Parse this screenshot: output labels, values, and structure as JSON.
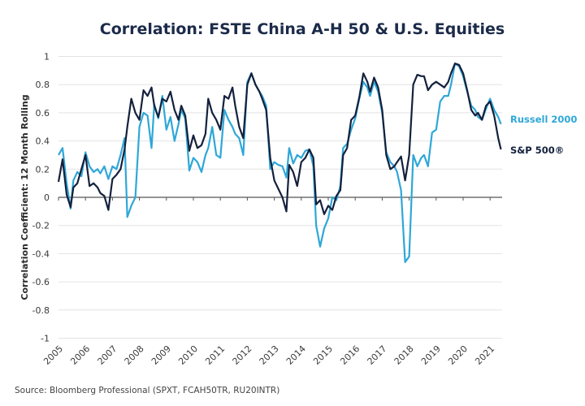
{
  "chart_data": {
    "type": "line",
    "title": "Correlation: FSTE China A-H 50 & U.S. Equities",
    "xlabel": "",
    "ylabel": "Correlation Coefficient: 12 Month Rolling",
    "ylim": [
      -1,
      1
    ],
    "xlim": [
      2005,
      2021.45
    ],
    "yticks": [
      "1",
      "0.8",
      "0.6",
      "0.4",
      "0.2",
      "0",
      "-0.2",
      "-0.4",
      "-0.6",
      "-0.8",
      "-1"
    ],
    "ytick_values": [
      1,
      0.8,
      0.6,
      0.4,
      0.2,
      0,
      -0.2,
      -0.4,
      -0.6,
      -0.8,
      -1
    ],
    "xticks": [
      "2005",
      "2006",
      "2007",
      "2008",
      "2009",
      "2010",
      "2011",
      "2012",
      "2013",
      "2014",
      "2015",
      "2016",
      "2017",
      "2018",
      "2019",
      "2020",
      "2021"
    ],
    "grid": true,
    "legend": "right",
    "source": "Source: Bloomberg Professional (SPXT, FCAH50TR, RU20INTR)",
    "series": [
      {
        "name": "S&P 500®",
        "color": "#14213d",
        "x": [
          2005.0,
          2005.15,
          2005.3,
          2005.45,
          2005.55,
          2005.7,
          2005.85,
          2006.0,
          2006.15,
          2006.3,
          2006.45,
          2006.55,
          2006.7,
          2006.85,
          2007.0,
          2007.15,
          2007.3,
          2007.45,
          2007.55,
          2007.7,
          2007.85,
          2008.0,
          2008.15,
          2008.3,
          2008.45,
          2008.55,
          2008.7,
          2008.85,
          2009.0,
          2009.15,
          2009.3,
          2009.45,
          2009.55,
          2009.7,
          2009.85,
          2010.0,
          2010.15,
          2010.3,
          2010.45,
          2010.55,
          2010.7,
          2010.85,
          2011.0,
          2011.15,
          2011.3,
          2011.45,
          2011.55,
          2011.7,
          2011.85,
          2012.0,
          2012.15,
          2012.3,
          2012.45,
          2012.55,
          2012.7,
          2012.85,
          2013.0,
          2013.15,
          2013.3,
          2013.45,
          2013.55,
          2013.7,
          2013.85,
          2014.0,
          2014.15,
          2014.3,
          2014.45,
          2014.55,
          2014.7,
          2014.85,
          2015.0,
          2015.15,
          2015.3,
          2015.45,
          2015.55,
          2015.7,
          2015.85,
          2016.0,
          2016.15,
          2016.3,
          2016.45,
          2016.55,
          2016.7,
          2016.85,
          2017.0,
          2017.15,
          2017.3,
          2017.45,
          2017.55,
          2017.7,
          2017.85,
          2018.0,
          2018.15,
          2018.3,
          2018.45,
          2018.55,
          2018.7,
          2018.85,
          2019.0,
          2019.15,
          2019.3,
          2019.45,
          2019.55,
          2019.7,
          2019.85,
          2020.0,
          2020.15,
          2020.3,
          2020.45,
          2020.55,
          2020.7,
          2020.85,
          2021.0,
          2021.15,
          2021.3,
          2021.4
        ],
        "values": [
          0.11,
          0.27,
          0.02,
          -0.07,
          0.07,
          0.1,
          0.2,
          0.3,
          0.08,
          0.1,
          0.07,
          0.03,
          0.01,
          -0.09,
          0.13,
          0.16,
          0.2,
          0.34,
          0.5,
          0.7,
          0.6,
          0.55,
          0.76,
          0.72,
          0.78,
          0.65,
          0.57,
          0.7,
          0.68,
          0.75,
          0.62,
          0.55,
          0.65,
          0.58,
          0.33,
          0.44,
          0.35,
          0.37,
          0.45,
          0.7,
          0.6,
          0.55,
          0.48,
          0.72,
          0.7,
          0.78,
          0.65,
          0.5,
          0.42,
          0.8,
          0.88,
          0.8,
          0.75,
          0.7,
          0.62,
          0.28,
          0.12,
          0.06,
          0.0,
          -0.1,
          0.23,
          0.18,
          0.08,
          0.25,
          0.28,
          0.34,
          0.28,
          -0.05,
          -0.02,
          -0.12,
          -0.06,
          -0.09,
          0.01,
          0.05,
          0.3,
          0.35,
          0.55,
          0.58,
          0.71,
          0.88,
          0.82,
          0.75,
          0.85,
          0.78,
          0.62,
          0.3,
          0.2,
          0.22,
          0.25,
          0.29,
          0.12,
          0.3,
          0.8,
          0.87,
          0.86,
          0.86,
          0.76,
          0.8,
          0.82,
          0.8,
          0.78,
          0.82,
          0.88,
          0.95,
          0.94,
          0.88,
          0.76,
          0.62,
          0.58,
          0.6,
          0.55,
          0.65,
          0.68,
          0.58,
          0.42,
          0.34
        ]
      },
      {
        "name": "Russell 2000",
        "color": "#2ea7d8",
        "x": [
          2005.0,
          2005.15,
          2005.3,
          2005.45,
          2005.55,
          2005.7,
          2005.85,
          2006.0,
          2006.15,
          2006.3,
          2006.45,
          2006.55,
          2006.7,
          2006.85,
          2007.0,
          2007.15,
          2007.3,
          2007.45,
          2007.55,
          2007.7,
          2007.85,
          2008.0,
          2008.15,
          2008.3,
          2008.45,
          2008.55,
          2008.7,
          2008.85,
          2009.0,
          2009.15,
          2009.3,
          2009.45,
          2009.55,
          2009.7,
          2009.85,
          2010.0,
          2010.15,
          2010.3,
          2010.45,
          2010.55,
          2010.7,
          2010.85,
          2011.0,
          2011.15,
          2011.3,
          2011.45,
          2011.55,
          2011.7,
          2011.85,
          2012.0,
          2012.15,
          2012.3,
          2012.45,
          2012.55,
          2012.7,
          2012.85,
          2013.0,
          2013.15,
          2013.3,
          2013.45,
          2013.55,
          2013.7,
          2013.85,
          2014.0,
          2014.15,
          2014.3,
          2014.45,
          2014.55,
          2014.7,
          2014.85,
          2015.0,
          2015.15,
          2015.3,
          2015.45,
          2015.55,
          2015.7,
          2015.85,
          2016.0,
          2016.15,
          2016.3,
          2016.45,
          2016.55,
          2016.7,
          2016.85,
          2017.0,
          2017.15,
          2017.3,
          2017.45,
          2017.55,
          2017.7,
          2017.85,
          2018.0,
          2018.15,
          2018.3,
          2018.45,
          2018.55,
          2018.7,
          2018.85,
          2019.0,
          2019.15,
          2019.3,
          2019.45,
          2019.55,
          2019.7,
          2019.85,
          2020.0,
          2020.15,
          2020.3,
          2020.45,
          2020.55,
          2020.7,
          2020.85,
          2021.0,
          2021.15,
          2021.3,
          2021.4
        ],
        "values": [
          0.3,
          0.35,
          0.1,
          -0.08,
          0.12,
          0.18,
          0.15,
          0.32,
          0.22,
          0.18,
          0.2,
          0.17,
          0.22,
          0.13,
          0.22,
          0.2,
          0.3,
          0.42,
          -0.14,
          -0.06,
          0.0,
          0.5,
          0.6,
          0.58,
          0.35,
          0.66,
          0.56,
          0.72,
          0.48,
          0.57,
          0.4,
          0.52,
          0.62,
          0.56,
          0.19,
          0.28,
          0.25,
          0.18,
          0.3,
          0.35,
          0.5,
          0.3,
          0.28,
          0.62,
          0.55,
          0.5,
          0.45,
          0.42,
          0.3,
          0.82,
          0.88,
          0.8,
          0.75,
          0.72,
          0.65,
          0.2,
          0.25,
          0.23,
          0.22,
          0.14,
          0.35,
          0.24,
          0.3,
          0.28,
          0.33,
          0.34,
          0.22,
          -0.2,
          -0.35,
          -0.22,
          -0.15,
          0.0,
          -0.02,
          0.08,
          0.35,
          0.38,
          0.48,
          0.56,
          0.7,
          0.82,
          0.78,
          0.72,
          0.82,
          0.75,
          0.6,
          0.32,
          0.25,
          0.22,
          0.18,
          0.05,
          -0.46,
          -0.42,
          0.3,
          0.22,
          0.28,
          0.3,
          0.22,
          0.46,
          0.48,
          0.68,
          0.72,
          0.72,
          0.8,
          0.95,
          0.93,
          0.86,
          0.75,
          0.65,
          0.62,
          0.57,
          0.55,
          0.63,
          0.7,
          0.62,
          0.57,
          0.52
        ]
      }
    ]
  }
}
